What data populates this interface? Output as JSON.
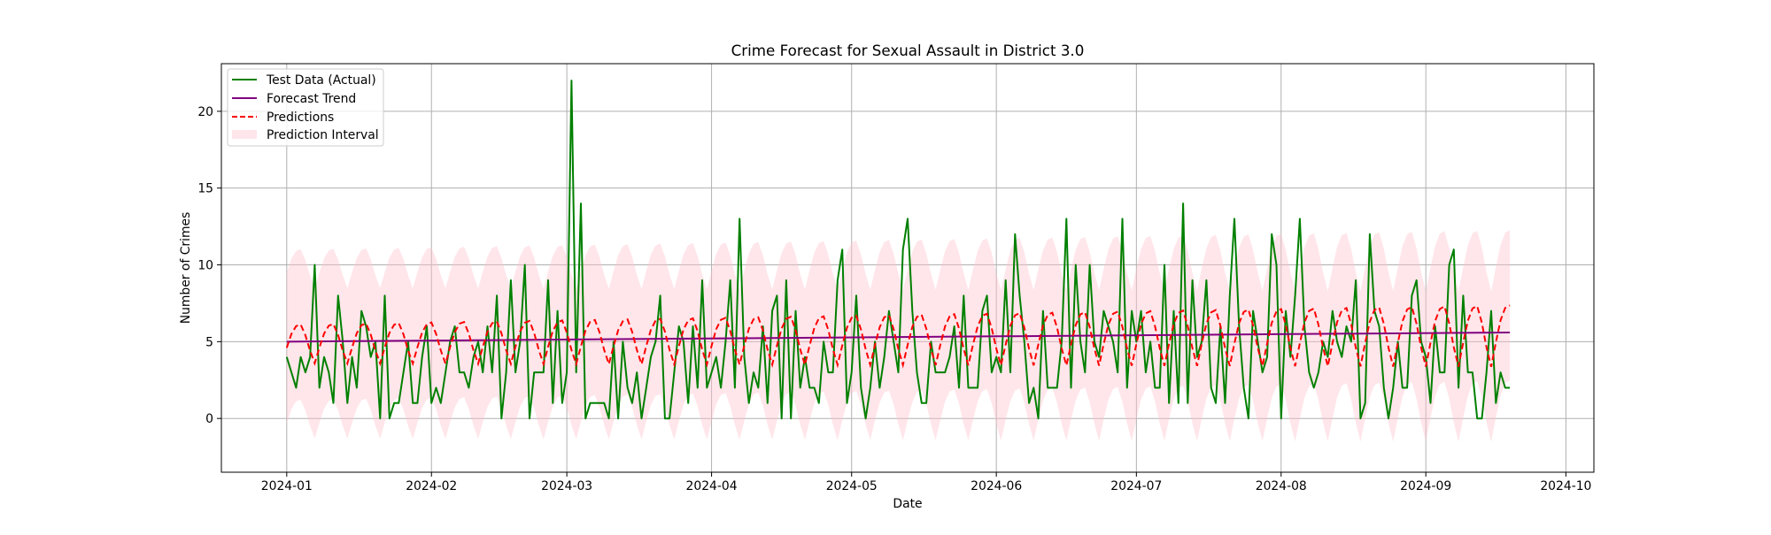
{
  "chart_data": {
    "type": "line",
    "title": "Crime Forecast for Sexual Assault in District 3.0",
    "xlabel": "Date",
    "ylabel": "Number of Crimes",
    "x_start": "2024-01-01",
    "x_end": "2024-09-22",
    "xlim": [
      "2023-12-18",
      "2024-10-07"
    ],
    "ylim": [
      -3.5,
      23.1
    ],
    "yticks": [
      0,
      5,
      10,
      15,
      20
    ],
    "xticks": [
      "2024-01",
      "2024-02",
      "2024-03",
      "2024-04",
      "2024-05",
      "2024-06",
      "2024-07",
      "2024-08",
      "2024-09",
      "2024-10"
    ],
    "grid": true,
    "legend_position": "top-left",
    "series": [
      {
        "name": "Test Data (Actual)",
        "color": "#008000",
        "style": "solid",
        "values": [
          4,
          3,
          2,
          4,
          3,
          4,
          10,
          2,
          4,
          3,
          1,
          8,
          5,
          1,
          4,
          2,
          7,
          6,
          4,
          5,
          0,
          8,
          0,
          1,
          1,
          3,
          5,
          1,
          1,
          4,
          6,
          1,
          2,
          1,
          3,
          5,
          6,
          3,
          3,
          2,
          4,
          5,
          3,
          6,
          3,
          8,
          0,
          3,
          9,
          3,
          5,
          10,
          0,
          3,
          3,
          3,
          9,
          1,
          7,
          1,
          3,
          22,
          3,
          14,
          0,
          1,
          1,
          1,
          1,
          0,
          5,
          0,
          5,
          2,
          1,
          3,
          0,
          2,
          4,
          5,
          8,
          0,
          0,
          3,
          6,
          5,
          1,
          6,
          2,
          9,
          2,
          3,
          4,
          2,
          5,
          9,
          2,
          13,
          4,
          1,
          3,
          2,
          6,
          1,
          7,
          8,
          0,
          9,
          0,
          7,
          2,
          4,
          2,
          2,
          1,
          5,
          3,
          3,
          9,
          11,
          1,
          3,
          8,
          2,
          0,
          2,
          5,
          2,
          4,
          7,
          5,
          3,
          11,
          13,
          7,
          3,
          1,
          1,
          5,
          3,
          3,
          3,
          4,
          6,
          2,
          8,
          2,
          2,
          2,
          7,
          8,
          3,
          4,
          3,
          9,
          3,
          12,
          8,
          5,
          1,
          2,
          0,
          7,
          2,
          2,
          2,
          5,
          13,
          2,
          10,
          5,
          3,
          10,
          5,
          4,
          7,
          6,
          5,
          3,
          13,
          2,
          7,
          5,
          7,
          3,
          5,
          2,
          2,
          10,
          1,
          7,
          1,
          14,
          1,
          9,
          4,
          5,
          9,
          2,
          1,
          6,
          1,
          8,
          13,
          6,
          2,
          0,
          7,
          5,
          3,
          4,
          12,
          10,
          0,
          7,
          4,
          8,
          13,
          6,
          3,
          2,
          3,
          5,
          4,
          7,
          5,
          4,
          6,
          5,
          9,
          0,
          1,
          12,
          7,
          6,
          2,
          0,
          2,
          5,
          2,
          2,
          8,
          9,
          5,
          4,
          1,
          6,
          3,
          3,
          10,
          11,
          2,
          8,
          3,
          3,
          0,
          0,
          3,
          7,
          1,
          3,
          2,
          2
        ]
      },
      {
        "name": "Forecast Trend",
        "color": "#800080",
        "style": "solid",
        "start": 5.0,
        "end": 5.6
      },
      {
        "name": "Predictions",
        "color": "#ff0000",
        "style": "dashed",
        "weekly_pattern": [
          -0.4,
          0.5,
          1.0,
          1.1,
          0.4,
          -0.6,
          -1.4
        ],
        "amplitude_growth": 0.6,
        "start": 4.4,
        "end": 5.6
      },
      {
        "name": "Prediction Interval",
        "color": "#ffc0cb",
        "style": "band",
        "half_width": 4.9
      }
    ]
  }
}
